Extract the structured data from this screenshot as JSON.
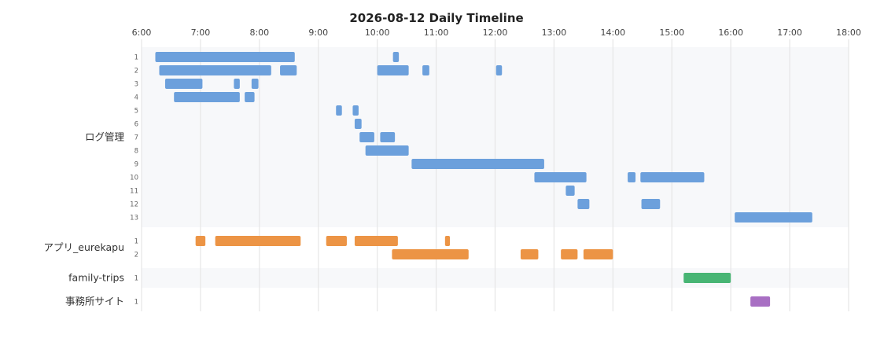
{
  "chart_data": {
    "type": "timeline",
    "title": "2026-08-12 Daily Timeline",
    "x_ticks": [
      "6:00",
      "7:00",
      "8:00",
      "9:00",
      "10:00",
      "11:00",
      "12:00",
      "13:00",
      "14:00",
      "15:00",
      "16:00",
      "17:00",
      "18:00"
    ],
    "xlim": [
      "6:00",
      "18:00"
    ],
    "grid": true,
    "groups": [
      {
        "name": "ログ管理",
        "color": "#6ca0dc",
        "rows": [
          {
            "label": "1",
            "segments": [
              [
                "6:14",
                "8:36"
              ],
              [
                "10:16",
                "10:22"
              ]
            ]
          },
          {
            "label": "2",
            "segments": [
              [
                "6:18",
                "8:12"
              ],
              [
                "8:21",
                "8:38"
              ],
              [
                "10:00",
                "10:32"
              ],
              [
                "10:46",
                "10:53"
              ],
              [
                "12:01",
                "12:07"
              ]
            ]
          },
          {
            "label": "3",
            "segments": [
              [
                "6:24",
                "7:02"
              ],
              [
                "7:34",
                "7:40"
              ],
              [
                "7:52",
                "7:59"
              ]
            ]
          },
          {
            "label": "4",
            "segments": [
              [
                "6:33",
                "7:40"
              ],
              [
                "7:45",
                "7:55"
              ]
            ]
          },
          {
            "label": "5",
            "segments": [
              [
                "9:18",
                "9:24"
              ],
              [
                "9:35",
                "9:41"
              ]
            ]
          },
          {
            "label": "6",
            "segments": [
              [
                "9:37",
                "9:44"
              ]
            ]
          },
          {
            "label": "7",
            "segments": [
              [
                "9:42",
                "9:57"
              ],
              [
                "10:03",
                "10:18"
              ]
            ]
          },
          {
            "label": "8",
            "segments": [
              [
                "9:48",
                "10:32"
              ]
            ]
          },
          {
            "label": "9",
            "segments": [
              [
                "10:35",
                "12:50"
              ]
            ]
          },
          {
            "label": "10",
            "segments": [
              [
                "12:40",
                "13:33"
              ],
              [
                "14:15",
                "14:23"
              ],
              [
                "14:28",
                "15:33"
              ]
            ]
          },
          {
            "label": "11",
            "segments": [
              [
                "13:12",
                "13:21"
              ]
            ]
          },
          {
            "label": "12",
            "segments": [
              [
                "13:24",
                "13:36"
              ],
              [
                "14:29",
                "14:48"
              ]
            ]
          },
          {
            "label": "13",
            "segments": [
              [
                "16:04",
                "17:23"
              ]
            ]
          }
        ]
      },
      {
        "name": "アプリ_eurekapu",
        "color": "#ec9445",
        "rows": [
          {
            "label": "1",
            "segments": [
              [
                "6:55",
                "7:05"
              ],
              [
                "7:15",
                "8:42"
              ],
              [
                "9:08",
                "9:29"
              ],
              [
                "9:37",
                "10:21"
              ],
              [
                "11:09",
                "11:14"
              ]
            ]
          },
          {
            "label": "2",
            "segments": [
              [
                "10:15",
                "11:33"
              ],
              [
                "12:26",
                "12:44"
              ],
              [
                "13:07",
                "13:24"
              ],
              [
                "13:30",
                "14:00"
              ]
            ]
          }
        ]
      },
      {
        "name": "family-trips",
        "color": "#48b574",
        "rows": [
          {
            "label": "1",
            "segments": [
              [
                "15:12",
                "16:00"
              ]
            ]
          }
        ]
      },
      {
        "name": "事務所サイト",
        "color": "#a86fc3",
        "rows": [
          {
            "label": "1",
            "segments": [
              [
                "16:20",
                "16:40"
              ]
            ]
          }
        ]
      }
    ]
  }
}
